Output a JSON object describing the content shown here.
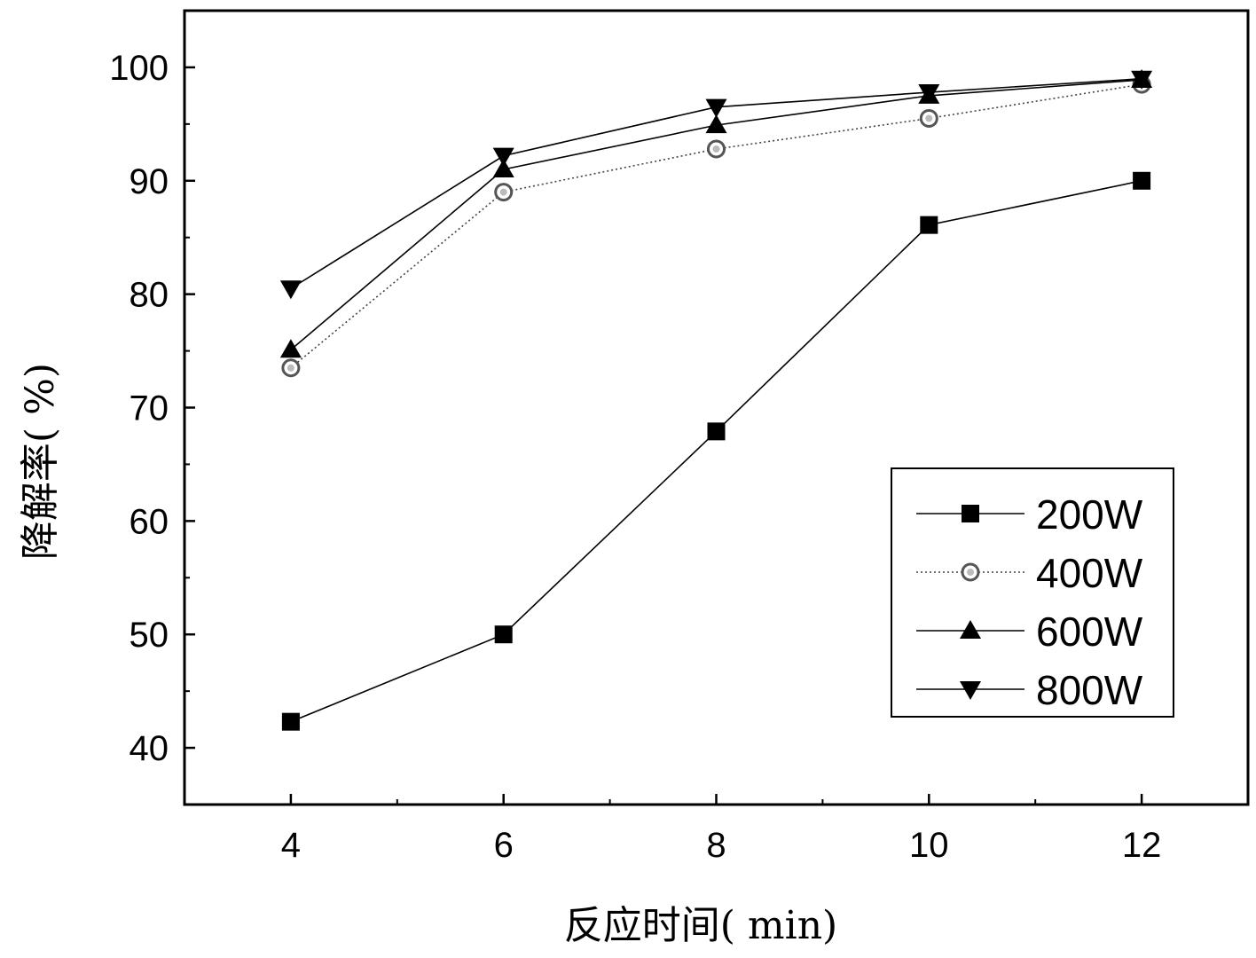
{
  "chart_data": {
    "type": "line",
    "title": "",
    "xlabel": "反应时间(   min)",
    "ylabel": "降解率(   %)",
    "xlim": [
      3,
      13
    ],
    "ylim": [
      35,
      105
    ],
    "xticks": [
      4,
      6,
      8,
      10,
      12
    ],
    "xminor": [
      5,
      7,
      9,
      11
    ],
    "yticks": [
      40,
      50,
      60,
      70,
      80,
      90,
      100
    ],
    "yminor": [
      45,
      55,
      65,
      75,
      85,
      95
    ],
    "grid": false,
    "legend_position": "bottom-right",
    "x": [
      4,
      6,
      8,
      10,
      12
    ],
    "series": [
      {
        "name": "200W",
        "marker": "square",
        "line": "solid",
        "values": [
          42.3,
          50.0,
          67.9,
          86.1,
          90.0
        ]
      },
      {
        "name": "400W",
        "marker": "circle-open",
        "line": "dotted",
        "values": [
          73.5,
          89.0,
          92.8,
          95.5,
          98.5
        ]
      },
      {
        "name": "600W",
        "marker": "triangle-up",
        "line": "solid",
        "values": [
          75.1,
          91.0,
          94.9,
          97.5,
          98.9
        ]
      },
      {
        "name": "800W",
        "marker": "triangle-down",
        "line": "solid",
        "values": [
          80.5,
          92.2,
          96.5,
          97.8,
          99.0
        ]
      }
    ]
  }
}
